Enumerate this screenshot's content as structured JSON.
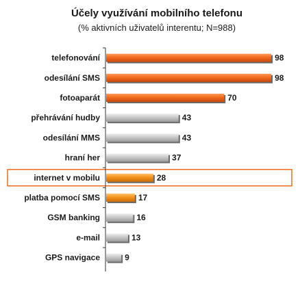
{
  "chart_data": {
    "type": "bar",
    "orientation": "horizontal",
    "title": "Účely využívání mobilního telefonu",
    "subtitle": "(% aktivních uživatelů interentu; N=988)",
    "categories": [
      "telefonování",
      "odesílání SMS",
      "fotoaparát",
      "přehrávání hudby",
      "odesílání MMS",
      "hraní her",
      "internet v mobilu",
      "platba pomocí SMS",
      "GSM banking",
      "e-mail",
      "GPS navigace"
    ],
    "values": [
      98,
      98,
      70,
      43,
      43,
      37,
      28,
      17,
      16,
      13,
      9
    ],
    "bar_colors": [
      "#f26b1d",
      "#f26b1d",
      "#f26b1d",
      "#c8c8c8",
      "#c8c8c8",
      "#c8c8c8",
      "#f5921e",
      "#f5921e",
      "#c8c8c8",
      "#c8c8c8",
      "#c8c8c8"
    ],
    "highlighted_category": "internet v mobilu",
    "highlight_color": "#f26b1d",
    "xlim": [
      0,
      100
    ],
    "grid": false,
    "legend": "none"
  }
}
